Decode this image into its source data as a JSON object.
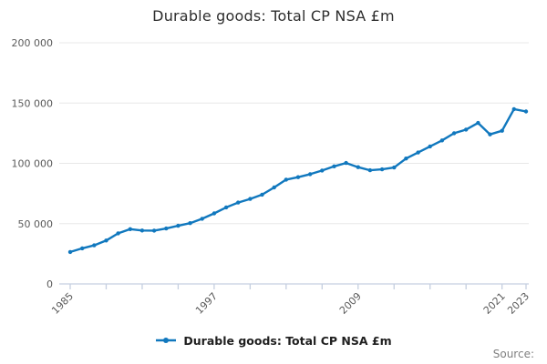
{
  "title": "Durable goods: Total CP NSA £m",
  "source_label": "Source:",
  "legend": {
    "label": "Durable goods: Total CP NSA £m",
    "marker": "line-with-dot"
  },
  "colors": {
    "line": "#1178be",
    "marker": "#1178be",
    "grid": "#e8e8e8",
    "axis": "#c5cfe0",
    "tick_label": "#5a5a5a",
    "title_text": "#2e2e2e",
    "legend_text": "#1f1f1f",
    "source_text": "#7f7f7f",
    "background": "#ffffff"
  },
  "chart_data": {
    "type": "line",
    "title": "Durable goods: Total CP NSA £m",
    "series_name": "Durable goods: Total CP NSA £m",
    "xlabel": "",
    "ylabel": "",
    "x": [
      1985,
      1986,
      1987,
      1988,
      1989,
      1990,
      1991,
      1992,
      1993,
      1994,
      1995,
      1996,
      1997,
      1998,
      1999,
      2000,
      2001,
      2002,
      2003,
      2004,
      2005,
      2006,
      2007,
      2008,
      2009,
      2010,
      2011,
      2012,
      2013,
      2014,
      2015,
      2016,
      2017,
      2018,
      2019,
      2020,
      2021,
      2022,
      2023
    ],
    "values": [
      26500,
      29500,
      32000,
      36000,
      42000,
      45400,
      44300,
      44200,
      46000,
      48200,
      50400,
      54000,
      58500,
      63500,
      67500,
      70500,
      74000,
      80000,
      86500,
      88500,
      91000,
      94000,
      97500,
      100300,
      96800,
      94300,
      95000,
      96500,
      104000,
      109000,
      114000,
      119000,
      125000,
      128000,
      133500,
      124000,
      127000,
      145000,
      143000
    ],
    "ylim": [
      0,
      200000
    ],
    "xlim": [
      1984,
      2023.3
    ],
    "yticks": [
      {
        "value": 0,
        "label": "0"
      },
      {
        "value": 50000,
        "label": "50 000"
      },
      {
        "value": 100000,
        "label": "100 000"
      },
      {
        "value": 150000,
        "label": "150 000"
      },
      {
        "value": 200000,
        "label": "200 000"
      }
    ],
    "xticks": [
      {
        "value": 1985,
        "label": "1985"
      },
      {
        "value": 1988,
        "label": ""
      },
      {
        "value": 1991,
        "label": ""
      },
      {
        "value": 1994,
        "label": ""
      },
      {
        "value": 1997,
        "label": "1997"
      },
      {
        "value": 2000,
        "label": ""
      },
      {
        "value": 2003,
        "label": ""
      },
      {
        "value": 2006,
        "label": ""
      },
      {
        "value": 2009,
        "label": "2009"
      },
      {
        "value": 2012,
        "label": ""
      },
      {
        "value": 2015,
        "label": ""
      },
      {
        "value": 2018,
        "label": ""
      },
      {
        "value": 2021,
        "label": "2021"
      },
      {
        "value": 2023,
        "label": "2023"
      }
    ],
    "xtick_label_angle": -45,
    "grid": "horizontal",
    "legend_position": "bottom-center",
    "marker": "dot"
  }
}
